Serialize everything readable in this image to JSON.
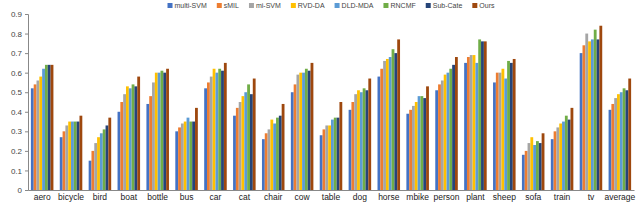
{
  "chart_data": {
    "type": "bar",
    "categories": [
      "aero",
      "bicycle",
      "bird",
      "boat",
      "bottle",
      "bus",
      "car",
      "cat",
      "chair",
      "cow",
      "table",
      "dog",
      "horse",
      "mbike",
      "person",
      "plant",
      "sheep",
      "sofa",
      "train",
      "tv",
      "average"
    ],
    "series": [
      {
        "name": "multi-SVM",
        "color": "#4472c4",
        "values": [
          0.52,
          0.27,
          0.15,
          0.4,
          0.44,
          0.3,
          0.52,
          0.38,
          0.26,
          0.5,
          0.28,
          0.41,
          0.58,
          0.39,
          0.51,
          0.65,
          0.55,
          0.18,
          0.26,
          0.7,
          0.41
        ]
      },
      {
        "name": "sMIL",
        "color": "#ed7d31",
        "values": [
          0.54,
          0.3,
          0.2,
          0.45,
          0.48,
          0.32,
          0.55,
          0.42,
          0.29,
          0.54,
          0.31,
          0.45,
          0.62,
          0.41,
          0.54,
          0.68,
          0.6,
          0.2,
          0.3,
          0.74,
          0.44
        ]
      },
      {
        "name": "mi-SVM",
        "color": "#a5a5a5",
        "values": [
          0.56,
          0.33,
          0.24,
          0.49,
          0.55,
          0.34,
          0.58,
          0.45,
          0.31,
          0.59,
          0.33,
          0.49,
          0.66,
          0.43,
          0.56,
          0.69,
          0.6,
          0.24,
          0.32,
          0.8,
          0.47
        ]
      },
      {
        "name": "RVD-DA",
        "color": "#ffc000",
        "values": [
          0.58,
          0.35,
          0.27,
          0.53,
          0.6,
          0.35,
          0.62,
          0.48,
          0.36,
          0.6,
          0.33,
          0.51,
          0.67,
          0.45,
          0.59,
          0.69,
          0.62,
          0.27,
          0.34,
          0.76,
          0.49
        ]
      },
      {
        "name": "DLD-MDA",
        "color": "#5b9bd5",
        "values": [
          0.62,
          0.35,
          0.29,
          0.52,
          0.6,
          0.37,
          0.6,
          0.5,
          0.34,
          0.6,
          0.36,
          0.5,
          0.68,
          0.48,
          0.6,
          0.65,
          0.57,
          0.23,
          0.35,
          0.77,
          0.5
        ]
      },
      {
        "name": "RNCMF",
        "color": "#70ad47",
        "values": [
          0.64,
          0.35,
          0.31,
          0.54,
          0.61,
          0.35,
          0.62,
          0.54,
          0.37,
          0.62,
          0.37,
          0.52,
          0.72,
          0.48,
          0.62,
          0.77,
          0.66,
          0.25,
          0.38,
          0.82,
          0.52
        ]
      },
      {
        "name": "Sub-Cate",
        "color": "#264478",
        "values": [
          0.64,
          0.35,
          0.33,
          0.53,
          0.6,
          0.35,
          0.61,
          0.49,
          0.38,
          0.61,
          0.37,
          0.51,
          0.7,
          0.47,
          0.64,
          0.76,
          0.65,
          0.24,
          0.36,
          0.77,
          0.51
        ]
      },
      {
        "name": "Ours",
        "color": "#9e480e",
        "values": [
          0.64,
          0.38,
          0.37,
          0.58,
          0.62,
          0.42,
          0.65,
          0.57,
          0.44,
          0.65,
          0.45,
          0.57,
          0.77,
          0.53,
          0.68,
          0.76,
          0.67,
          0.29,
          0.42,
          0.84,
          0.57
        ]
      }
    ],
    "ylim": [
      0,
      0.9
    ],
    "yticks": [
      0,
      0.1,
      0.2,
      0.3,
      0.4,
      0.5,
      0.6,
      0.7,
      0.8,
      0.9
    ],
    "grid": false,
    "legend": "top"
  }
}
